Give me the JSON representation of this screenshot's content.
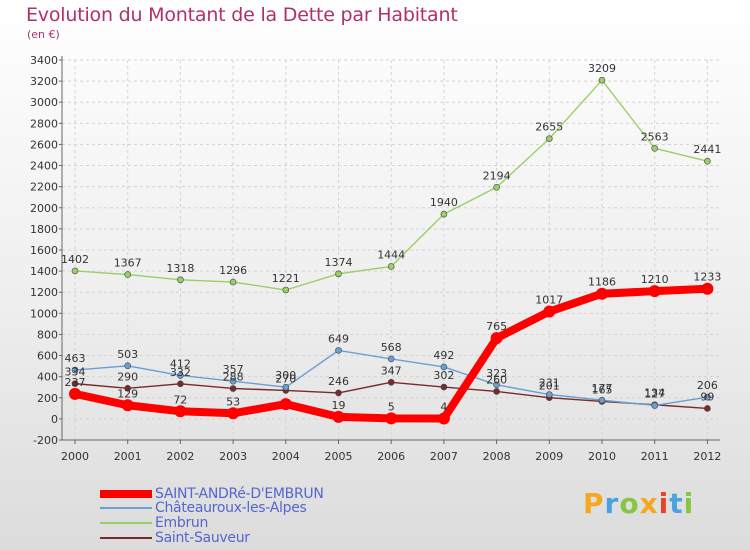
{
  "title": "Evolution du Montant de la Dette par Habitant",
  "subtitle": "(en €)",
  "logo": {
    "letters": [
      "P",
      "r",
      "o",
      "x",
      "i",
      "t",
      "i"
    ],
    "colors": [
      "#f4a81d",
      "#4aa3df",
      "#88c540",
      "#f4a81d",
      "#e8412c",
      "#4aa3df",
      "#88c540"
    ]
  },
  "chart_data": {
    "type": "line",
    "title": "Evolution du Montant de la Dette par Habitant",
    "subtitle": "(en €)",
    "x": [
      "2000",
      "2001",
      "2002",
      "2003",
      "2004",
      "2005",
      "2006",
      "2007",
      "2008",
      "2009",
      "2010",
      "2011",
      "2012"
    ],
    "ylim": [
      -200,
      3400
    ],
    "yticks": [
      -200,
      0,
      200,
      400,
      600,
      800,
      1000,
      1200,
      1400,
      1600,
      1800,
      2000,
      2200,
      2400,
      2600,
      2800,
      3000,
      3200,
      3400
    ],
    "grid": true,
    "legend_position": "bottom-left",
    "series": [
      {
        "name": "SAINT-ANDRé-D'EMBRUN",
        "color": "#ff0000",
        "values": [
          237,
          129,
          72,
          53,
          140,
          19,
          5,
          4,
          765,
          1017,
          1186,
          1210,
          1233
        ],
        "labels": [
          "237",
          "129",
          "72",
          "53",
          "",
          "19",
          "5",
          "4",
          "765",
          "1017",
          "1186",
          "1210",
          "1233"
        ]
      },
      {
        "name": "Châteauroux-les-Alpes",
        "color": "#6a9fd4",
        "values": [
          463,
          503,
          412,
          357,
          300,
          649,
          568,
          492,
          323,
          231,
          177,
          127,
          206
        ],
        "labels": [
          "463",
          "503",
          "412",
          "357",
          "300",
          "649",
          "568",
          "492",
          "323",
          "231",
          "177",
          "127",
          "206"
        ]
      },
      {
        "name": "Embrun",
        "color": "#99d066",
        "values": [
          1402,
          1367,
          1318,
          1296,
          1221,
          1374,
          1444,
          1940,
          2194,
          2655,
          3209,
          2563,
          2441
        ],
        "labels": [
          "1402",
          "1367",
          "1318",
          "1296",
          "1221",
          "1374",
          "1444",
          "1940",
          "2194",
          "2655",
          "3209",
          "2563",
          "2441"
        ]
      },
      {
        "name": "Saint-Sauveur",
        "color": "#7a2a2a",
        "values": [
          334,
          290,
          332,
          288,
          270,
          246,
          347,
          302,
          260,
          201,
          165,
          134,
          99
        ],
        "labels": [
          "334",
          "290",
          "332",
          "288",
          "270",
          "246",
          "347",
          "302",
          "260",
          "201",
          "165",
          "134",
          "99"
        ]
      }
    ]
  }
}
